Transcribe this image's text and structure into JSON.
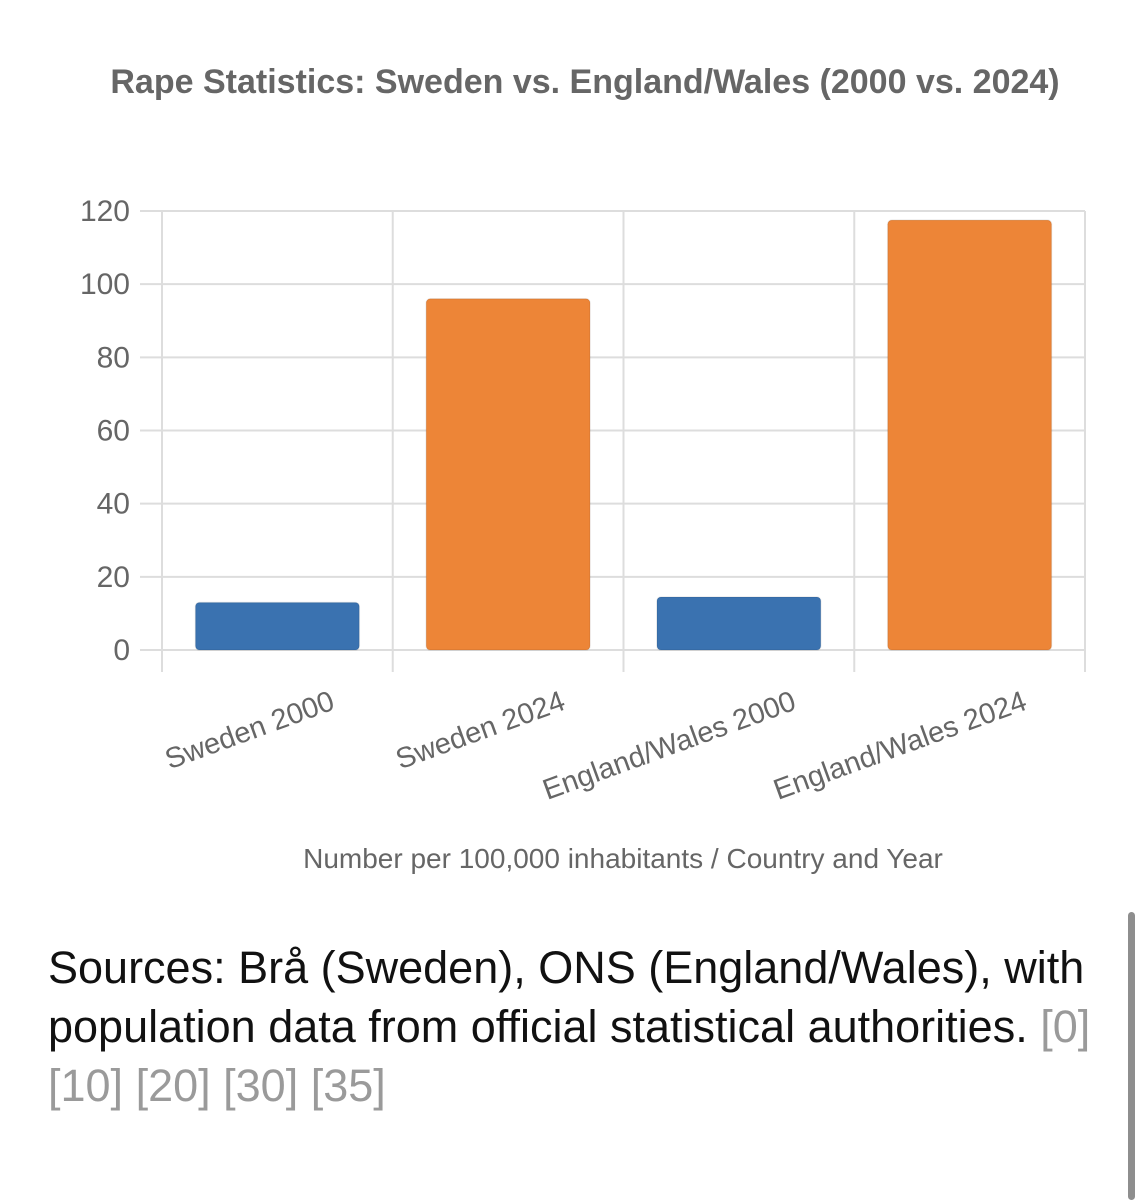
{
  "chart_data": {
    "type": "bar",
    "title": "Rape Statistics: Sweden vs. England/Wales (2000 vs. 2024)",
    "categories": [
      "Sweden 2000",
      "Sweden 2024",
      "England/Wales 2000",
      "England/Wales 2024"
    ],
    "values": [
      13,
      96,
      14.5,
      117.5
    ],
    "bar_colors": [
      "#3a72b0",
      "#ed8537",
      "#3a72b0",
      "#ed8537"
    ],
    "xlabel": "Number per 100,000 inhabitants / Country and Year",
    "ylabel": "",
    "ylim": [
      0,
      120
    ],
    "yticks": [
      0,
      20,
      40,
      60,
      80,
      100,
      120
    ],
    "grid": true
  },
  "sources": {
    "text": "Sources: Brå (Sweden), ONS (England/Wales), with population data from official statistical authorities.",
    "refs": [
      "[0]",
      "[10]",
      "[20]",
      "[30]",
      "[35]"
    ]
  },
  "colors": {
    "grid": "#dddddd",
    "text": "#666666",
    "ref": "#9a9a9a"
  }
}
